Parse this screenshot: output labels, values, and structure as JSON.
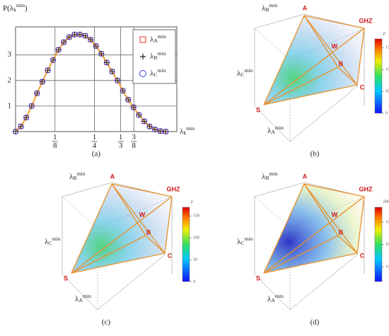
{
  "chart_data": [
    {
      "type": "scatter",
      "caption": "(a)",
      "y_label": "P(λ_k^{min})",
      "x_label": "λ_k^{min}",
      "x": [
        0,
        0.017,
        0.034,
        0.051,
        0.068,
        0.085,
        0.102,
        0.119,
        0.136,
        0.153,
        0.17,
        0.187,
        0.204,
        0.221,
        0.238,
        0.255,
        0.272,
        0.289,
        0.306,
        0.323,
        0.34,
        0.357,
        0.374,
        0.391,
        0.408,
        0.425,
        0.442,
        0.459,
        0.476
      ],
      "series": [
        {
          "name": "λ_A^{min}",
          "color": "#e0302a",
          "marker": "square",
          "values": [
            0,
            0.2,
            0.55,
            1.0,
            1.5,
            1.95,
            2.4,
            2.8,
            3.2,
            3.5,
            3.7,
            3.8,
            3.8,
            3.75,
            3.6,
            3.35,
            3.05,
            2.7,
            2.35,
            2.0,
            1.6,
            1.25,
            0.95,
            0.65,
            0.4,
            0.2,
            0.08,
            0.02,
            0
          ]
        },
        {
          "name": "λ_B^{min}",
          "color": "#222222",
          "marker": "plus",
          "values": [
            0,
            0.2,
            0.55,
            1.0,
            1.5,
            1.95,
            2.4,
            2.8,
            3.2,
            3.5,
            3.7,
            3.8,
            3.8,
            3.75,
            3.6,
            3.35,
            3.05,
            2.7,
            2.35,
            2.0,
            1.6,
            1.25,
            0.95,
            0.65,
            0.4,
            0.2,
            0.08,
            0.02,
            0
          ]
        },
        {
          "name": "λ_C^{min}",
          "color": "#2b3fd6",
          "marker": "circle",
          "values": [
            0,
            0.2,
            0.55,
            1.0,
            1.5,
            1.95,
            2.4,
            2.8,
            3.2,
            3.5,
            3.7,
            3.8,
            3.8,
            3.75,
            3.6,
            3.35,
            3.05,
            2.7,
            2.35,
            2.0,
            1.6,
            1.25,
            0.95,
            0.65,
            0.4,
            0.2,
            0.08,
            0.02,
            0
          ]
        }
      ],
      "line_color": "#f0a030",
      "xlim": [
        0,
        0.5
      ],
      "ylim": [
        0,
        4.1
      ],
      "xticks": [
        {
          "value": 0.125,
          "label": "1/8"
        },
        {
          "value": 0.25,
          "label": "1/4"
        },
        {
          "value": 0.3333,
          "label": "1/3"
        },
        {
          "value": 0.375,
          "label": "3/8"
        }
      ],
      "yticks": [
        1,
        2,
        3
      ],
      "grid": true
    },
    {
      "type": "tetrahedron",
      "caption": "(b)",
      "axis_labels": [
        "λ_A^{min}",
        "λ_B^{min}",
        "λ_C^{min}"
      ],
      "vertices": [
        "A",
        "GHZ",
        "W",
        "B",
        "C",
        "S"
      ],
      "cloud": "green",
      "colorbar": {
        "label": "ρ",
        "clim": [
          0,
          170
        ],
        "ticks": [
          0,
          50,
          100,
          150
        ]
      }
    },
    {
      "type": "tetrahedron",
      "caption": "(c)",
      "axis_labels": [
        "λ_A^{min}",
        "λ_B^{min}",
        "λ_C^{min}"
      ],
      "vertices": [
        "A",
        "GHZ",
        "W",
        "B",
        "C",
        "S"
      ],
      "cloud": "green",
      "colorbar": {
        "label": "ρ",
        "clim": [
          0,
          170
        ],
        "ticks": [
          0,
          50,
          100,
          150
        ]
      }
    },
    {
      "type": "tetrahedron",
      "caption": "(d)",
      "axis_labels": [
        "λ_A^{min}",
        "λ_B^{min}",
        "λ_C^{min}"
      ],
      "vertices": [
        "A",
        "GHZ",
        "W",
        "B",
        "C",
        "S"
      ],
      "cloud": "blue",
      "colorbar": {
        "label": "|Idet|",
        "clim": [
          0,
          1
        ],
        "ticks": [
          {
            "value": 0.2,
            "label": "10⁻³"
          },
          {
            "value": 0.5,
            "label": "10⁻²"
          },
          {
            "value": 0.8,
            "label": "10⁻¹"
          }
        ]
      }
    }
  ]
}
